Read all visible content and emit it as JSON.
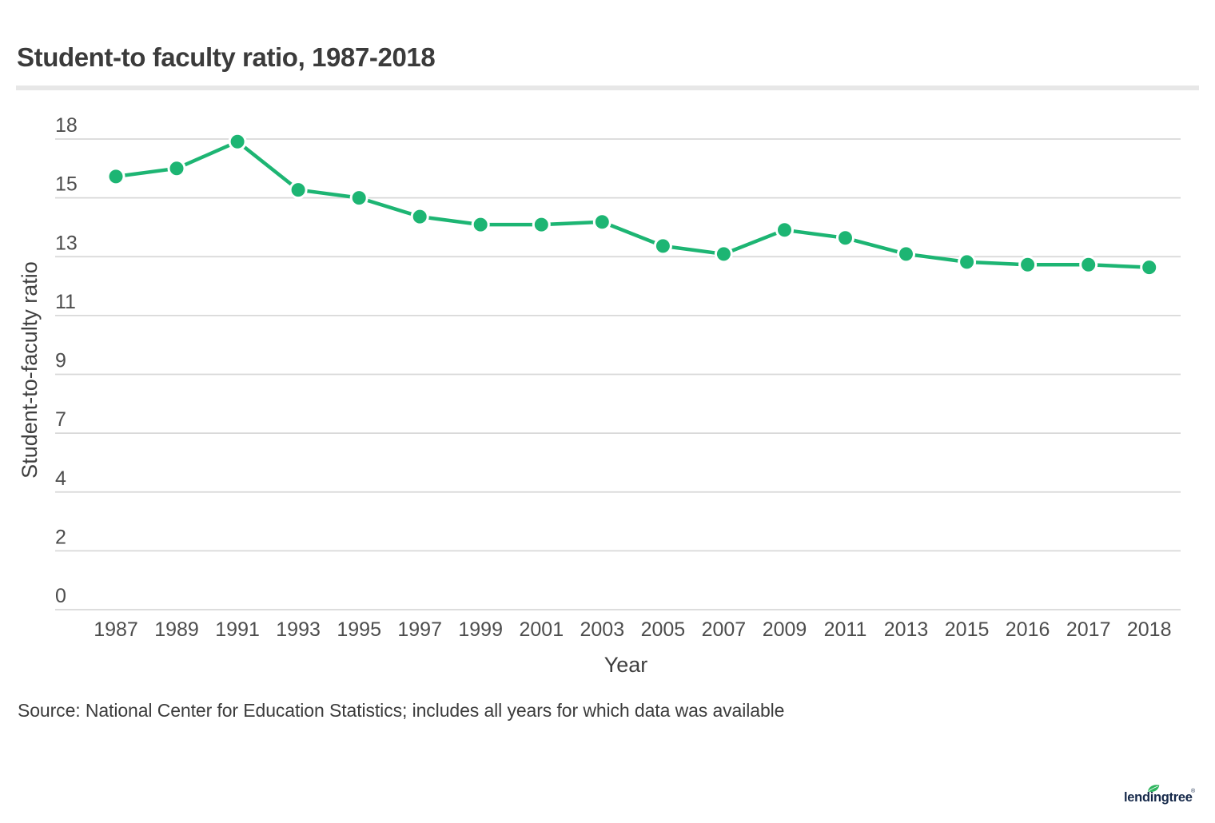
{
  "header": {
    "title": "Student-to faculty ratio, 1987-2018"
  },
  "chart_data": {
    "type": "line",
    "title": "Student-to faculty ratio, 1987-2018",
    "xlabel": "Year",
    "ylabel": "Student-to-faculty ratio",
    "categories": [
      "1987",
      "1989",
      "1991",
      "1993",
      "1995",
      "1997",
      "1999",
      "2001",
      "2003",
      "2005",
      "2007",
      "2009",
      "2011",
      "2013",
      "2015",
      "2016",
      "2017",
      "2018"
    ],
    "values": [
      16.2,
      16.5,
      17.5,
      15.7,
      15.4,
      14.7,
      14.4,
      14.4,
      14.5,
      13.6,
      13.3,
      14.2,
      13.9,
      13.3,
      13.0,
      12.9,
      12.9,
      12.8
    ],
    "ylim": [
      0,
      17.6
    ],
    "y_tick_labels_top_to_bottom": [
      "18",
      "15",
      "13",
      "11",
      "9",
      "7",
      "4",
      "2",
      "0"
    ],
    "grid": "horizontal-only",
    "legend": "none",
    "line_color": "#1db573",
    "marker": "circle",
    "gridline_color": "#d8d8d8",
    "tick_label_color": "#4d4d4d",
    "axis_title_color": "#3f3f3f"
  },
  "footer": {
    "source": "Source: National Center for Education Statistics; includes all years for which data was available"
  },
  "branding": {
    "logo_text": "lendingtree",
    "registered_mark": "®",
    "logo_color": "#16294a",
    "leaf_color": "#2eb55e"
  }
}
